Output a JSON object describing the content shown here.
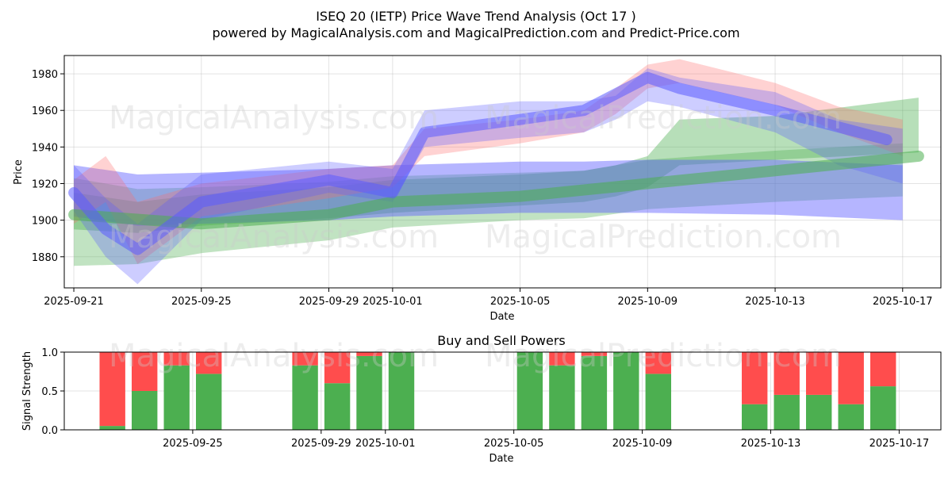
{
  "header": {
    "title": "ISEQ 20 (IETP) Price Wave Trend Analysis (Oct 17 )",
    "subtitle": "powered by MagicalAnalysis.com and MagicalPrediction.com and Predict-Price.com"
  },
  "watermarks": [
    "MagicalAnalysis.com",
    "MagicalPrediction.com"
  ],
  "colors": {
    "blue": "#5b5bff",
    "red": "#ff6b6b",
    "green": "#4caf50",
    "buy": "#4caf50",
    "sell": "#ff4d4d"
  },
  "chart_data": [
    {
      "type": "area",
      "title": "",
      "xlabel": "Date",
      "ylabel": "Price",
      "xlim": [
        -0.3,
        27.2
      ],
      "ylim": [
        1863,
        1990
      ],
      "grid": true,
      "x_ticks": [
        {
          "pos": 0,
          "label": "2025-09-21"
        },
        {
          "pos": 4,
          "label": "2025-09-25"
        },
        {
          "pos": 8,
          "label": "2025-09-29"
        },
        {
          "pos": 10,
          "label": "2025-10-01"
        },
        {
          "pos": 14,
          "label": "2025-10-05"
        },
        {
          "pos": 18,
          "label": "2025-10-09"
        },
        {
          "pos": 22,
          "label": "2025-10-13"
        },
        {
          "pos": 26,
          "label": "2025-10-17"
        }
      ],
      "y_ticks": [
        1880,
        1900,
        1920,
        1940,
        1960,
        1980
      ],
      "bands": [
        {
          "name": "green forecast band",
          "color": "green",
          "opacity": 0.35,
          "x": [
            0,
            2,
            4,
            8,
            10,
            14,
            16,
            18,
            22,
            26
          ],
          "upper": [
            1923,
            1917,
            1918,
            1921,
            1924,
            1926,
            1927,
            1933,
            1938,
            1942
          ],
          "lower": [
            1875,
            1876,
            1882,
            1889,
            1896,
            1900,
            1901,
            1906,
            1910,
            1913
          ]
        },
        {
          "name": "green trend band",
          "color": "green",
          "opacity": 0.4,
          "x": [
            0,
            2,
            4,
            8,
            10,
            14,
            16,
            17,
            18,
            19,
            22,
            26.5
          ],
          "upper": [
            1915,
            1910,
            1914,
            1918,
            1922,
            1925,
            1927,
            1930,
            1935,
            1955,
            1957,
            1967
          ],
          "lower": [
            1895,
            1893,
            1897,
            1901,
            1904,
            1908,
            1910,
            1913,
            1918,
            1930,
            1933,
            1937
          ]
        },
        {
          "name": "blue forecast band",
          "color": "blue",
          "opacity": 0.45,
          "x": [
            0,
            2,
            4,
            8,
            10,
            14,
            16,
            18,
            22,
            26
          ],
          "upper": [
            1930,
            1925,
            1926,
            1928,
            1930,
            1932,
            1932,
            1933,
            1933,
            1930
          ],
          "lower": [
            1902,
            1897,
            1898,
            1900,
            1902,
            1904,
            1904,
            1904,
            1903,
            1900
          ]
        },
        {
          "name": "red wave band",
          "color": "red",
          "opacity": 0.3,
          "x": [
            0,
            1,
            2,
            4,
            8,
            10,
            11,
            14,
            16,
            17,
            18,
            19,
            22,
            24,
            26
          ],
          "upper": [
            1922,
            1935,
            1910,
            1920,
            1928,
            1930,
            1950,
            1955,
            1960,
            1972,
            1985,
            1988,
            1975,
            1962,
            1955
          ],
          "lower": [
            1898,
            1910,
            1876,
            1902,
            1912,
            1918,
            1935,
            1942,
            1948,
            1958,
            1972,
            1975,
            1963,
            1948,
            1935
          ]
        },
        {
          "name": "purple wave band",
          "color": "blue",
          "opacity": 0.3,
          "x": [
            0,
            1,
            2,
            4,
            8,
            10,
            11,
            14,
            16,
            17,
            18,
            19,
            22,
            24,
            26
          ],
          "upper": [
            1930,
            1912,
            1898,
            1925,
            1932,
            1928,
            1960,
            1965,
            1965,
            1968,
            1983,
            1978,
            1970,
            1955,
            1950
          ],
          "lower": [
            1905,
            1880,
            1865,
            1900,
            1915,
            1910,
            1940,
            1945,
            1948,
            1955,
            1965,
            1962,
            1948,
            1930,
            1920
          ]
        }
      ],
      "lines": [
        {
          "name": "green trend line",
          "color": "green",
          "x": [
            0,
            4,
            8,
            10,
            14,
            18,
            22,
            26.5
          ],
          "y": [
            1903,
            1898,
            1903,
            1910,
            1913,
            1920,
            1927,
            1935
          ]
        },
        {
          "name": "blue trend line",
          "color": "blue",
          "x": [
            0,
            1,
            2,
            4,
            8,
            10,
            11,
            14,
            16,
            18,
            19,
            22,
            25.5
          ],
          "y": [
            1915,
            1895,
            1884,
            1910,
            1922,
            1915,
            1948,
            1955,
            1960,
            1978,
            1972,
            1960,
            1944
          ]
        }
      ]
    },
    {
      "type": "bar",
      "title": "Buy and Sell Powers",
      "xlabel": "Date",
      "ylabel": "Signal Strength",
      "xlim": [
        -0.5,
        26.8
      ],
      "ylim": [
        0,
        1
      ],
      "grid": true,
      "x_ticks": [
        {
          "pos": 3.5,
          "label": "2025-09-25"
        },
        {
          "pos": 7.5,
          "label": "2025-09-29"
        },
        {
          "pos": 9.5,
          "label": "2025-10-01"
        },
        {
          "pos": 13.5,
          "label": "2025-10-05"
        },
        {
          "pos": 17.5,
          "label": "2025-10-09"
        },
        {
          "pos": 21.5,
          "label": "2025-10-13"
        },
        {
          "pos": 25.5,
          "label": "2025-10-17"
        }
      ],
      "y_ticks": [
        0.0,
        0.5,
        1.0
      ],
      "y_tick_labels": [
        "0.0",
        "0.5",
        "1.0"
      ],
      "series": [
        {
          "name": "buy",
          "color": "buy",
          "x": [
            1,
            2,
            3,
            4,
            7,
            8,
            9,
            10,
            14,
            15,
            16,
            17,
            18,
            21,
            22,
            23,
            24,
            25
          ],
          "values": [
            0.05,
            0.5,
            0.83,
            0.72,
            0.83,
            0.6,
            0.95,
            1.0,
            1.0,
            0.83,
            0.95,
            1.0,
            0.72,
            0.33,
            0.45,
            0.45,
            0.33,
            0.56
          ]
        },
        {
          "name": "sell",
          "color": "sell",
          "x": [
            1,
            2,
            3,
            4,
            7,
            8,
            9,
            10,
            14,
            15,
            16,
            17,
            18,
            21,
            22,
            23,
            24,
            25
          ],
          "values": [
            0.95,
            0.5,
            0.17,
            0.28,
            0.17,
            0.4,
            0.05,
            0.0,
            0.0,
            0.17,
            0.05,
            0.0,
            0.28,
            0.67,
            0.55,
            0.55,
            0.67,
            0.44
          ]
        }
      ]
    }
  ]
}
